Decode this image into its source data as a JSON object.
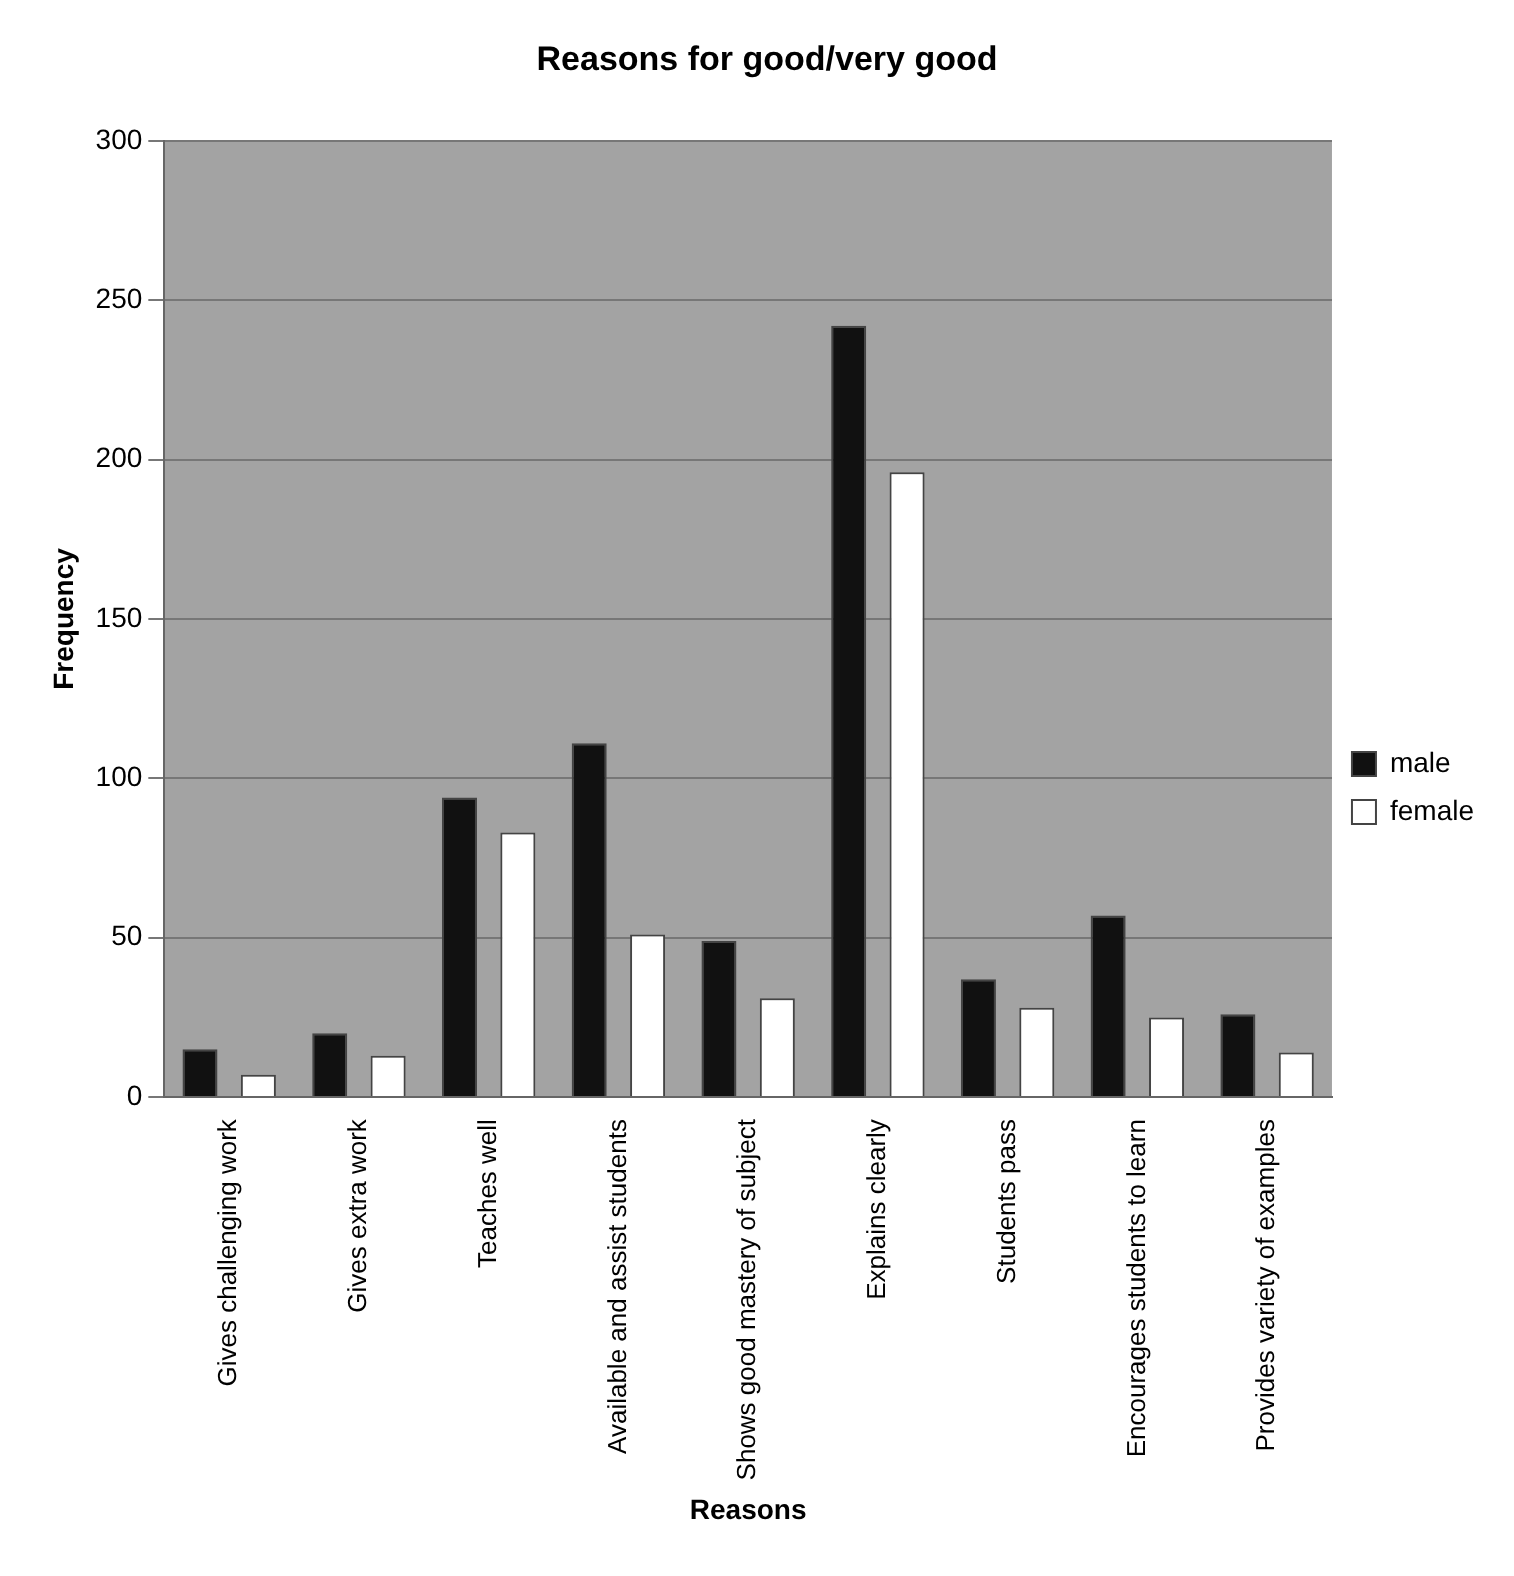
{
  "chart_data": {
    "type": "bar",
    "title": "Reasons for good/very good",
    "xlabel": "Reasons",
    "ylabel": "Frequency",
    "categories": [
      "Gives challenging work",
      "Gives extra work",
      "Teaches well",
      "Available and assist students",
      "Shows good mastery of subject",
      "Explains clearly",
      "Students pass",
      "Encourages students to learn",
      "Provides variety of examples"
    ],
    "series": [
      {
        "name": "male",
        "color": "#111111",
        "values": [
          15,
          20,
          94,
          111,
          49,
          242,
          37,
          57,
          26
        ]
      },
      {
        "name": "female",
        "color": "#ffffff",
        "values": [
          7,
          13,
          83,
          51,
          31,
          196,
          28,
          25,
          14
        ]
      }
    ],
    "ylim": [
      0,
      300
    ],
    "yticks": [
      0,
      50,
      100,
      150,
      200,
      250,
      300
    ],
    "grid": "y",
    "legend": "right"
  }
}
